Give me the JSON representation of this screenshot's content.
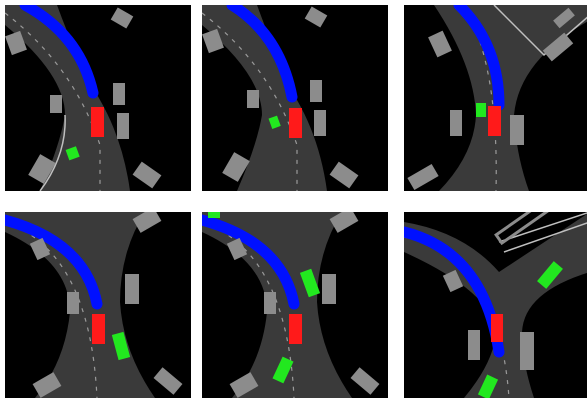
{
  "colors": {
    "background": "#000000",
    "road": "#3a3a3a",
    "lane_marking": "#9a9a9a",
    "road_edge": "#bfbfbf",
    "building": "#8c8c8c",
    "planned_path": "#0010ff",
    "ego_vehicle": "#ff1a1a",
    "other_vehicle": "#22e81f"
  },
  "frames": [
    {
      "id": 1
    },
    {
      "id": 2
    },
    {
      "id": 3
    },
    {
      "id": 4
    },
    {
      "id": 5
    },
    {
      "id": 6
    }
  ]
}
